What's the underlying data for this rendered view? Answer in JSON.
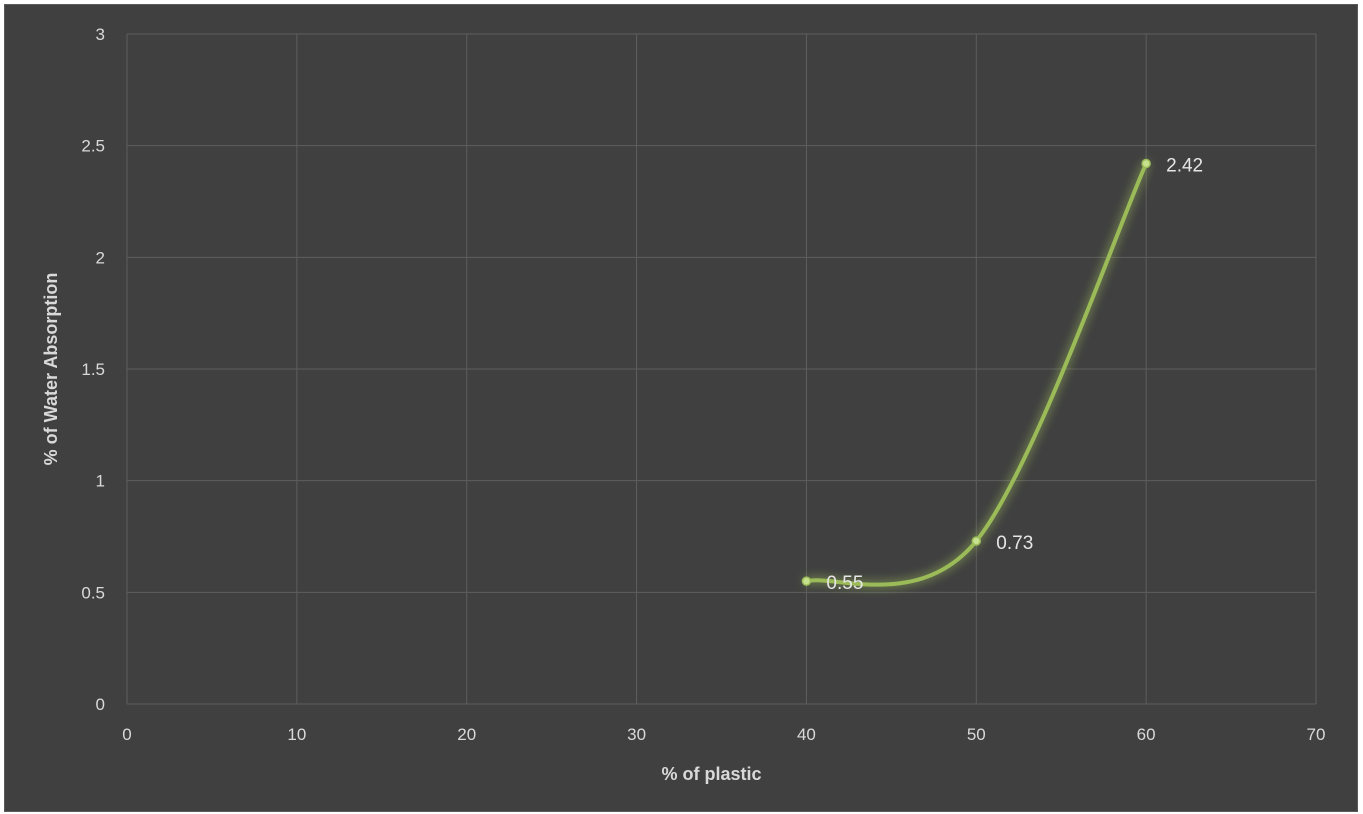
{
  "chart_data": {
    "type": "line",
    "smooth": true,
    "x": [
      40,
      50,
      60
    ],
    "series": [
      {
        "values": [
          0.55,
          0.73,
          2.42
        ]
      }
    ],
    "data_labels": [
      "0.55",
      "0.73",
      "2.42"
    ],
    "xlabel": "% of plastic",
    "ylabel": "% of Water Absorption",
    "xlim": [
      0,
      70
    ],
    "ylim": [
      0,
      3
    ],
    "x_ticks": [
      "0",
      "10",
      "20",
      "30",
      "40",
      "50",
      "60",
      "70"
    ],
    "y_ticks": [
      "0",
      "0.5",
      "1",
      "1.5",
      "2",
      "2.5",
      "3"
    ],
    "grid": true,
    "legend": "none",
    "colors": {
      "background": "#404040",
      "line": "#9bbb59",
      "grid": "#5e5e5e",
      "text": "#d9d9d9"
    }
  }
}
